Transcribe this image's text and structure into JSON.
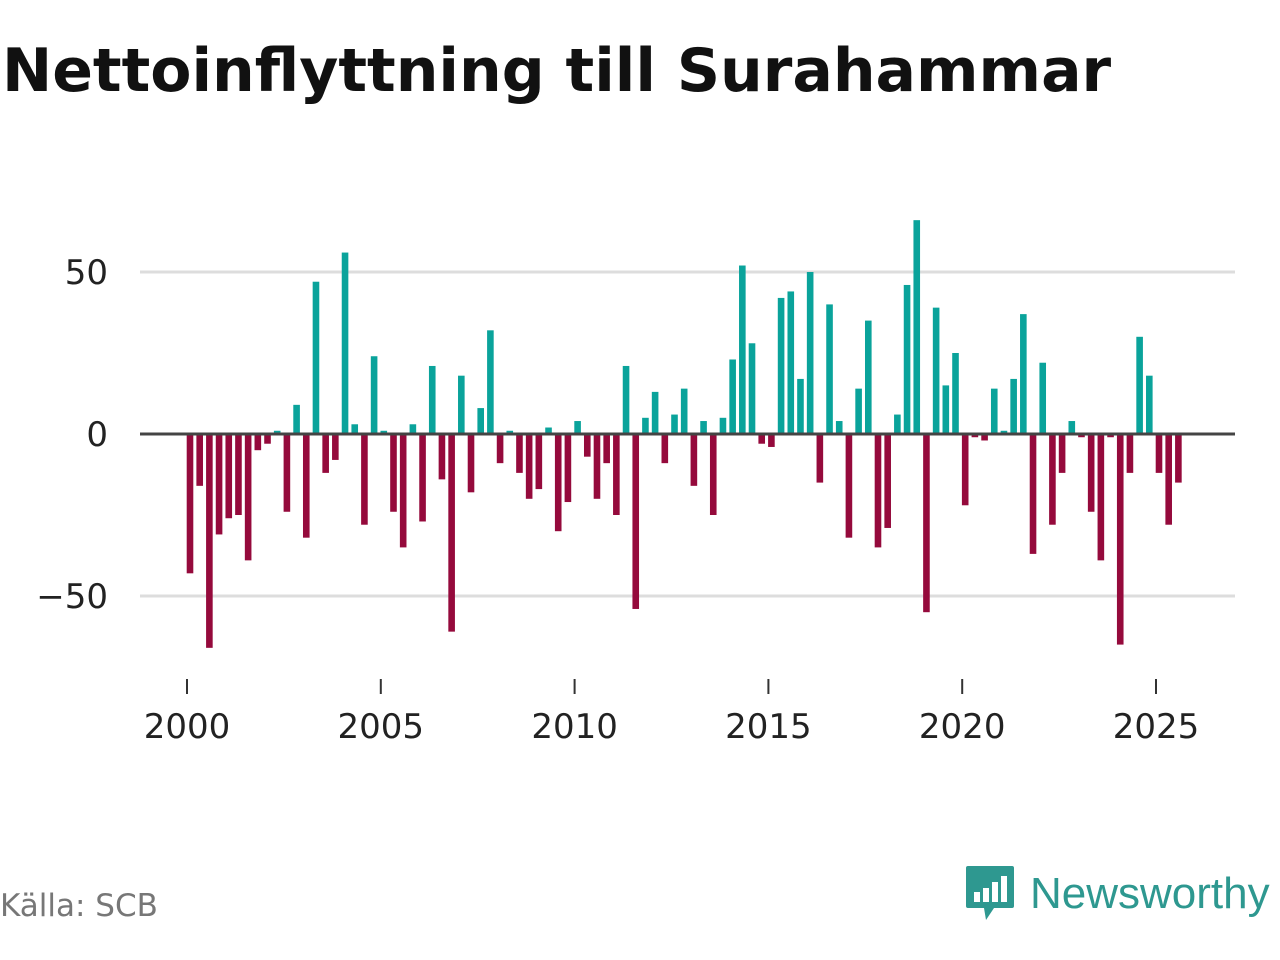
{
  "title": "Nettoinflyttning till Surahammar",
  "source": "Källa: SCB",
  "brand": {
    "name": "Newsworthy",
    "icon": "newsworthy-logo-icon"
  },
  "colors": {
    "positive": "#0aa39b",
    "negative": "#950a3c",
    "zero_line": "#444444",
    "grid": "#dddddd",
    "brand": "#2e9890"
  },
  "chart_data": {
    "type": "bar",
    "title": "Nettoinflyttning till Surahammar",
    "xlabel": "",
    "ylabel": "",
    "x_ticks": [
      "2000",
      "2005",
      "2010",
      "2015",
      "2020",
      "2025"
    ],
    "y_ticks": [
      50,
      0,
      -50
    ],
    "ylim": [
      -72,
      72
    ],
    "x_range": [
      1999.0,
      2027.0
    ],
    "grid": true,
    "series": [
      {
        "name": "Nettoinflyttning",
        "start": "2000-Q1",
        "frequency": "quarterly",
        "values": [
          -43,
          -16,
          -66,
          -31,
          -26,
          -25,
          -39,
          -5,
          -3,
          1,
          -24,
          9,
          -32,
          47,
          -12,
          -8,
          56,
          3,
          -28,
          24,
          1,
          -24,
          -35,
          3,
          -27,
          21,
          -14,
          -61,
          18,
          -18,
          8,
          32,
          -9,
          1,
          -12,
          -20,
          -17,
          2,
          -30,
          -21,
          4,
          -7,
          -20,
          -9,
          -25,
          21,
          -54,
          5,
          13,
          -9,
          6,
          14,
          -16,
          4,
          -25,
          5,
          23,
          52,
          28,
          -3,
          -4,
          42,
          44,
          17,
          50,
          -15,
          40,
          4,
          -32,
          14,
          35,
          -35,
          -29,
          6,
          46,
          66,
          -55,
          39,
          15,
          25,
          -22,
          -1,
          -2,
          14,
          1,
          17,
          37,
          -37,
          22,
          -28,
          -12,
          4,
          -1,
          -24,
          -39,
          -1,
          -65,
          -12,
          30,
          18,
          -12,
          -28,
          -15
        ]
      }
    ]
  }
}
